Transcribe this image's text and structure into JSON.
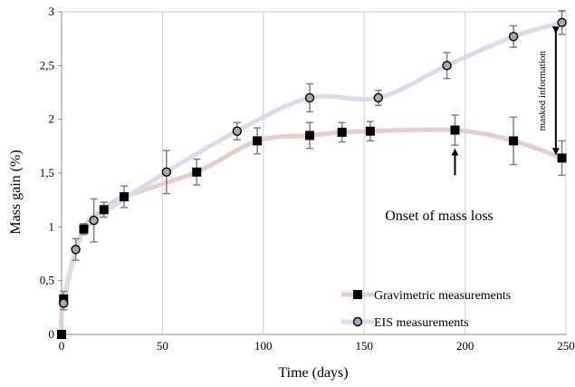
{
  "chart_data": {
    "type": "scatter",
    "xlabel": "Time (days)",
    "ylabel": "Mass gain (%)",
    "xlim": [
      0,
      250
    ],
    "ylim": [
      0,
      3
    ],
    "x_ticks": [
      "0",
      "50",
      "100",
      "150",
      "200",
      "250"
    ],
    "y_ticks": [
      "0",
      "0,5",
      "1",
      "1,5",
      "2",
      "2,5",
      "3"
    ],
    "grid": "vertical",
    "legend_position": "bottom-right",
    "series": [
      {
        "name": "Gravimetric measurements",
        "marker": "square",
        "trend_color": "#e8cdcd",
        "points": [
          {
            "x": 0,
            "y": 0,
            "err": 0
          },
          {
            "x": 1,
            "y": 0.33,
            "err": 0.07
          },
          {
            "x": 11,
            "y": 0.98,
            "err": 0.05
          },
          {
            "x": 21,
            "y": 1.16,
            "err": 0.07
          },
          {
            "x": 31,
            "y": 1.28,
            "err": 0.1
          },
          {
            "x": 67,
            "y": 1.51,
            "err": 0.12
          },
          {
            "x": 97,
            "y": 1.8,
            "err": 0.12
          },
          {
            "x": 123,
            "y": 1.85,
            "err": 0.12
          },
          {
            "x": 139,
            "y": 1.88,
            "err": 0.09
          },
          {
            "x": 153,
            "y": 1.89,
            "err": 0.09
          },
          {
            "x": 195,
            "y": 1.9,
            "err": 0.14
          },
          {
            "x": 224,
            "y": 1.8,
            "err": 0.22
          },
          {
            "x": 248,
            "y": 1.64,
            "err": 0.16
          }
        ]
      },
      {
        "name": "EIS measurements",
        "marker": "circle",
        "trend_color": "#d7dcef",
        "points": [
          {
            "x": 1,
            "y": 0.29,
            "err": 0.06
          },
          {
            "x": 7,
            "y": 0.79,
            "err": 0.1
          },
          {
            "x": 16,
            "y": 1.06,
            "err": 0.2
          },
          {
            "x": 52,
            "y": 1.51,
            "err": 0.2
          },
          {
            "x": 87,
            "y": 1.89,
            "err": 0.08
          },
          {
            "x": 123,
            "y": 2.2,
            "err": 0.13
          },
          {
            "x": 157,
            "y": 2.2,
            "err": 0.07
          },
          {
            "x": 191,
            "y": 2.5,
            "err": 0.12
          },
          {
            "x": 224,
            "y": 2.77,
            "err": 0.1
          },
          {
            "x": 248,
            "y": 2.9,
            "err": 0.11
          }
        ]
      }
    ],
    "annotations": [
      {
        "text": "Onset of mass loss",
        "arrow_x": 195,
        "arrow_y_from": 1.48,
        "arrow_y_to": 1.73
      },
      {
        "text": "masked information",
        "arrow_x": 245,
        "arrow_y_from": 1.65,
        "arrow_y_to": 2.88
      }
    ]
  }
}
